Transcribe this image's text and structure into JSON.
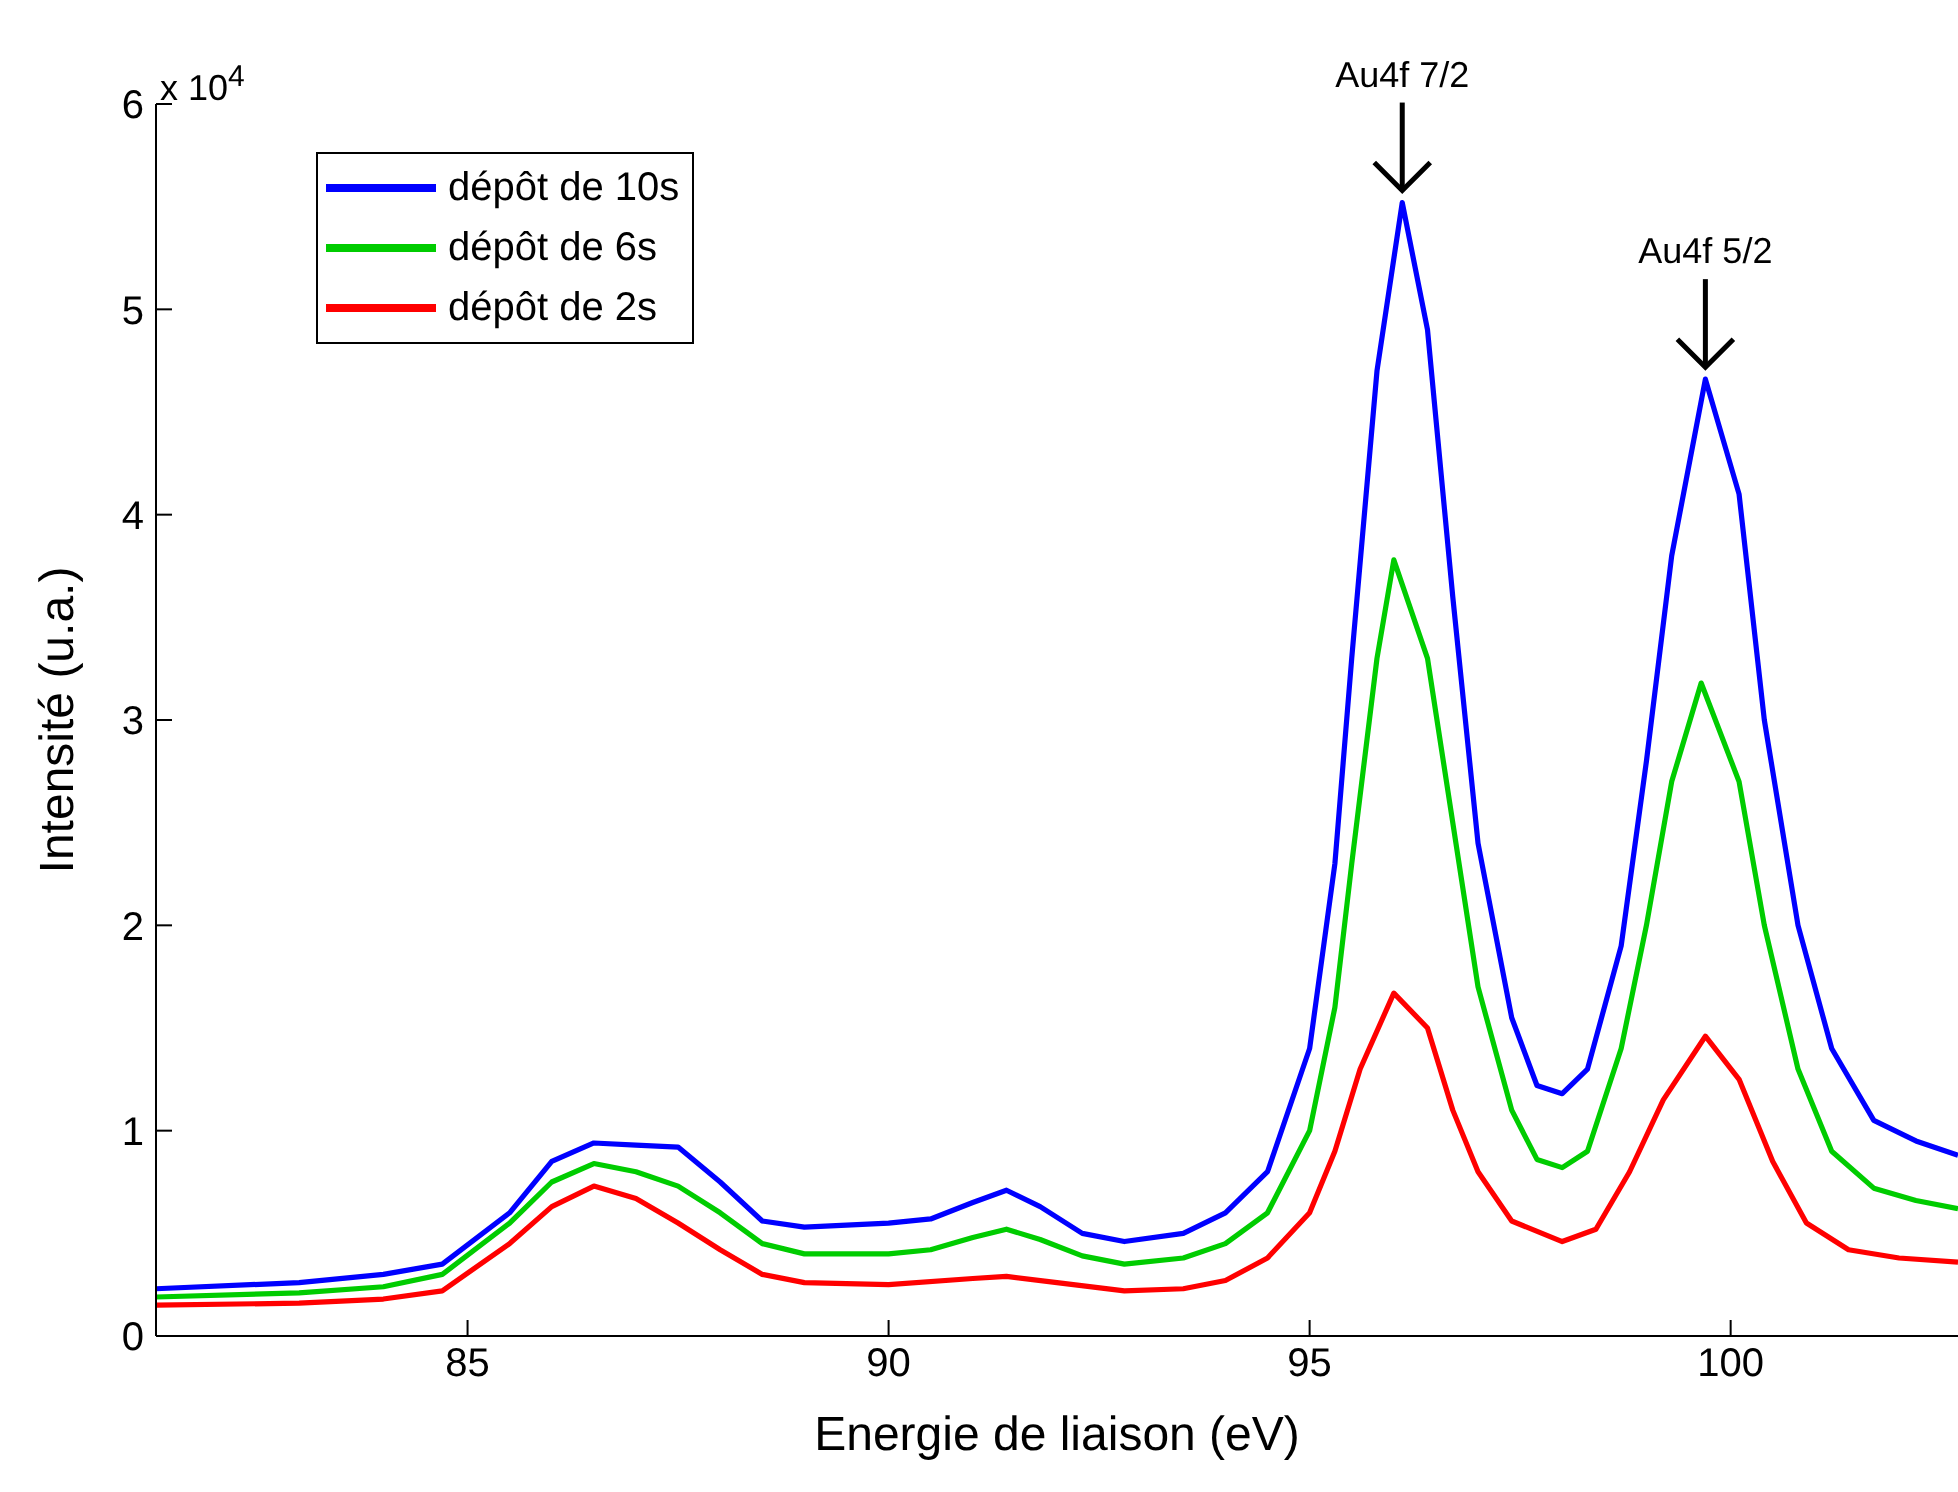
{
  "chart_data": {
    "type": "line",
    "xlabel": "Energie de liaison (eV)",
    "ylabel": "Intensité (u.a.)",
    "xlim": [
      81.3,
      102.7
    ],
    "xticks": [
      85,
      90,
      95,
      100
    ],
    "ylim": [
      0,
      6
    ],
    "yticks": [
      0,
      1,
      2,
      3,
      4,
      5,
      6
    ],
    "legend": "top left",
    "line_style": "solid",
    "annotations": [
      "x 10$^{4}$",
      {
        "text": "Au4f 7/2",
        "x": 96.1,
        "y": 5.52
      },
      {
        "text": "Au4f 5/2",
        "x": 99.7,
        "y": 4.66
      }
    ],
    "series": [
      {
        "name": "dépôt de 10s",
        "color": "#0000ff",
        "x": [
          81.3,
          83,
          84,
          84.7,
          85.5,
          86,
          86.5,
          87,
          87.5,
          88,
          88.5,
          89,
          90,
          90.5,
          91,
          91.4,
          91.8,
          92.3,
          92.8,
          93.5,
          94,
          94.5,
          95,
          95.3,
          95.5,
          95.8,
          96.1,
          96.4,
          96.7,
          97,
          97.4,
          97.7,
          98,
          98.3,
          98.7,
          99,
          99.3,
          99.7,
          100.1,
          100.4,
          100.8,
          101.2,
          101.7,
          102.2,
          102.7
        ],
        "values": [
          0.23,
          0.26,
          0.3,
          0.35,
          0.6,
          0.85,
          0.94,
          0.93,
          0.92,
          0.75,
          0.56,
          0.53,
          0.55,
          0.57,
          0.65,
          0.71,
          0.63,
          0.5,
          0.46,
          0.5,
          0.6,
          0.8,
          1.4,
          2.3,
          3.3,
          4.7,
          5.52,
          4.9,
          3.6,
          2.4,
          1.55,
          1.22,
          1.18,
          1.3,
          1.9,
          2.8,
          3.8,
          4.66,
          4.1,
          3.0,
          2.0,
          1.4,
          1.05,
          0.95,
          0.88
        ]
      },
      {
        "name": "dépôt de 6s",
        "color": "#00cc00",
        "x": [
          81.3,
          83,
          84,
          84.7,
          85.5,
          86,
          86.5,
          87,
          87.5,
          88,
          88.5,
          89,
          90,
          90.5,
          91,
          91.4,
          91.8,
          92.3,
          92.8,
          93.5,
          94,
          94.5,
          95,
          95.3,
          95.5,
          95.8,
          96,
          96.4,
          96.7,
          97,
          97.4,
          97.7,
          98,
          98.3,
          98.7,
          99,
          99.3,
          99.65,
          100.1,
          100.4,
          100.8,
          101.2,
          101.7,
          102.2,
          102.7
        ],
        "values": [
          0.19,
          0.21,
          0.24,
          0.3,
          0.55,
          0.75,
          0.84,
          0.8,
          0.73,
          0.6,
          0.45,
          0.4,
          0.4,
          0.42,
          0.48,
          0.52,
          0.47,
          0.39,
          0.35,
          0.38,
          0.45,
          0.6,
          1.0,
          1.6,
          2.3,
          3.3,
          3.78,
          3.3,
          2.5,
          1.7,
          1.1,
          0.86,
          0.82,
          0.9,
          1.4,
          2.0,
          2.7,
          3.18,
          2.7,
          2.0,
          1.3,
          0.9,
          0.72,
          0.66,
          0.62
        ]
      },
      {
        "name": "dépôt de 2s",
        "color": "#ff0000",
        "x": [
          81.3,
          83,
          84,
          84.7,
          85.5,
          86,
          86.5,
          87,
          87.5,
          88,
          88.5,
          89,
          90,
          91,
          91.4,
          92,
          92.8,
          93.5,
          94,
          94.5,
          95,
          95.3,
          95.6,
          96,
          96.4,
          96.7,
          97,
          97.4,
          98,
          98.4,
          98.8,
          99.2,
          99.7,
          100.1,
          100.5,
          100.9,
          101.4,
          102,
          102.7
        ],
        "values": [
          0.15,
          0.16,
          0.18,
          0.22,
          0.45,
          0.63,
          0.73,
          0.67,
          0.55,
          0.42,
          0.3,
          0.26,
          0.25,
          0.28,
          0.29,
          0.26,
          0.22,
          0.23,
          0.27,
          0.38,
          0.6,
          0.9,
          1.3,
          1.67,
          1.5,
          1.1,
          0.8,
          0.56,
          0.46,
          0.52,
          0.8,
          1.15,
          1.46,
          1.25,
          0.85,
          0.55,
          0.42,
          0.38,
          0.36
        ]
      }
    ]
  }
}
